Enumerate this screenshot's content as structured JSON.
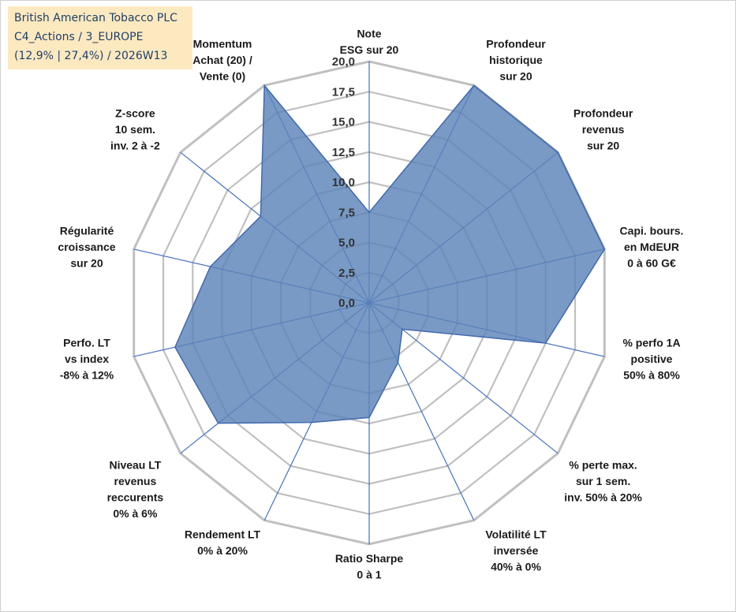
{
  "info": {
    "company": "British American Tobacco PLC",
    "portfolio": "C4_Actions / 3_EUROPE",
    "metrics": "(12,9% | 27,4%) / 2026W13"
  },
  "chart_data": {
    "type": "radar",
    "title": "",
    "ylim": [
      0,
      20
    ],
    "ticks": [
      "0,0",
      "2,5",
      "5,0",
      "7,5",
      "10,0",
      "12,5",
      "15,0",
      "17,5",
      "20,0"
    ],
    "grid": true,
    "colors": {
      "fill": "#5b84b8",
      "stroke": "#4169b0",
      "grid": "#c0c0c0",
      "axis": "#4472c4"
    },
    "axes": [
      {
        "name": "note-esg",
        "label": [
          "Note",
          "ESG sur 20"
        ]
      },
      {
        "name": "profondeur-historique",
        "label": [
          "Profondeur",
          "historique",
          "sur 20"
        ]
      },
      {
        "name": "profondeur-revenus",
        "label": [
          "Profondeur",
          "revenus",
          "sur 20"
        ]
      },
      {
        "name": "capi-bours",
        "label": [
          "Capi. bours.",
          "en MdEUR",
          "0 à 60 G€"
        ]
      },
      {
        "name": "perfo-1a-positive",
        "label": [
          "% perfo 1A",
          "positive",
          "50% à 80%"
        ]
      },
      {
        "name": "perte-max",
        "label": [
          "% perte max.",
          "sur 1 sem.",
          "inv. 50% à 20%"
        ]
      },
      {
        "name": "volatilite-lt",
        "label": [
          "Volatilité LT",
          "inversée",
          "40% à 0%"
        ]
      },
      {
        "name": "ratio-sharpe",
        "label": [
          "Ratio Sharpe",
          "0 à 1"
        ]
      },
      {
        "name": "rendement-lt",
        "label": [
          "Rendement LT",
          "0% à 20%"
        ]
      },
      {
        "name": "niveau-lt-revenus",
        "label": [
          "Niveau LT",
          "revenus",
          "reccurents",
          "0% à 6%"
        ]
      },
      {
        "name": "perfo-lt-vs-index",
        "label": [
          "Perfo. LT",
          "vs index",
          "-8% à 12%"
        ]
      },
      {
        "name": "regularite-croissance",
        "label": [
          "Régularité",
          "croissance",
          "sur 20"
        ]
      },
      {
        "name": "z-score",
        "label": [
          "Z-score",
          "10 sem.",
          "inv. 2 à -2"
        ]
      },
      {
        "name": "momentum",
        "label": [
          "Momentum",
          "Achat (20) /",
          "Vente (0)"
        ]
      }
    ],
    "series": [
      {
        "name": "British American Tobacco PLC",
        "values": [
          7.5,
          20,
          20,
          20,
          15,
          3.5,
          5.5,
          9.5,
          11,
          16,
          16.5,
          13.5,
          11.5,
          20
        ]
      }
    ]
  }
}
